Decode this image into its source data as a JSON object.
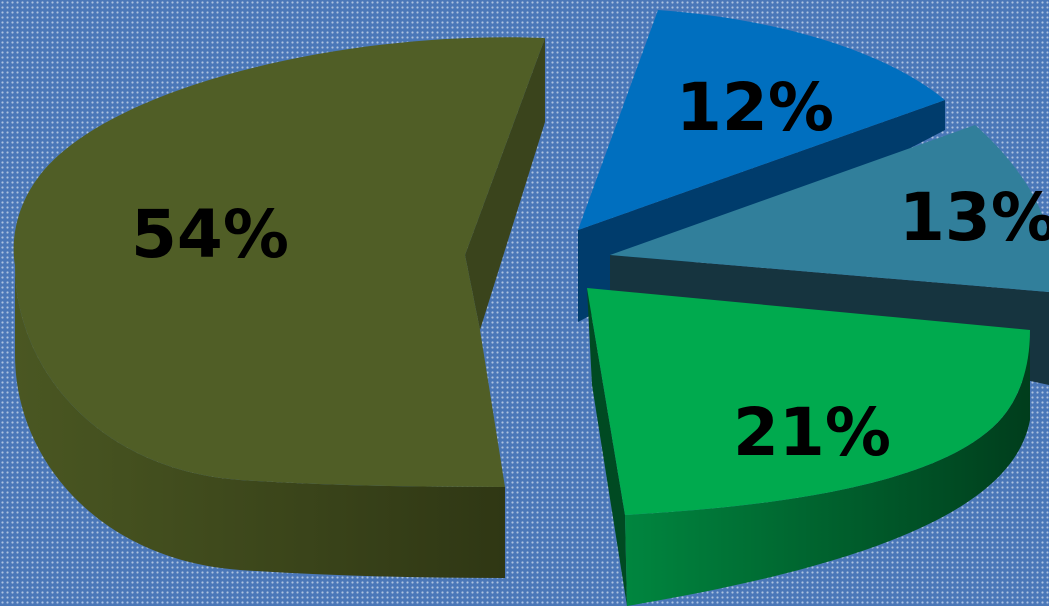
{
  "chart_data": {
    "type": "pie",
    "style": "3d-exploded",
    "legend": "none",
    "slices": [
      {
        "value": 54,
        "label": "54%",
        "color": "#505e26",
        "side_color": "#3a441c",
        "rim_color": "#3a4418"
      },
      {
        "value": 12,
        "label": "12%",
        "color": "#006fbf",
        "side_color": "#003c6c",
        "rim_color": "#004f8a"
      },
      {
        "value": 13,
        "label": "13%",
        "color": "#317f9b",
        "side_color": "#16343f",
        "rim_color": "#1f5466"
      },
      {
        "value": 21,
        "label": "21%",
        "color": "#00aa4e",
        "side_color": "#004a22",
        "rim_color": "#006b33"
      }
    ]
  },
  "colors": {
    "background": "#4a77b8",
    "background_dots": "#ffffff",
    "label_text": "#000000"
  }
}
